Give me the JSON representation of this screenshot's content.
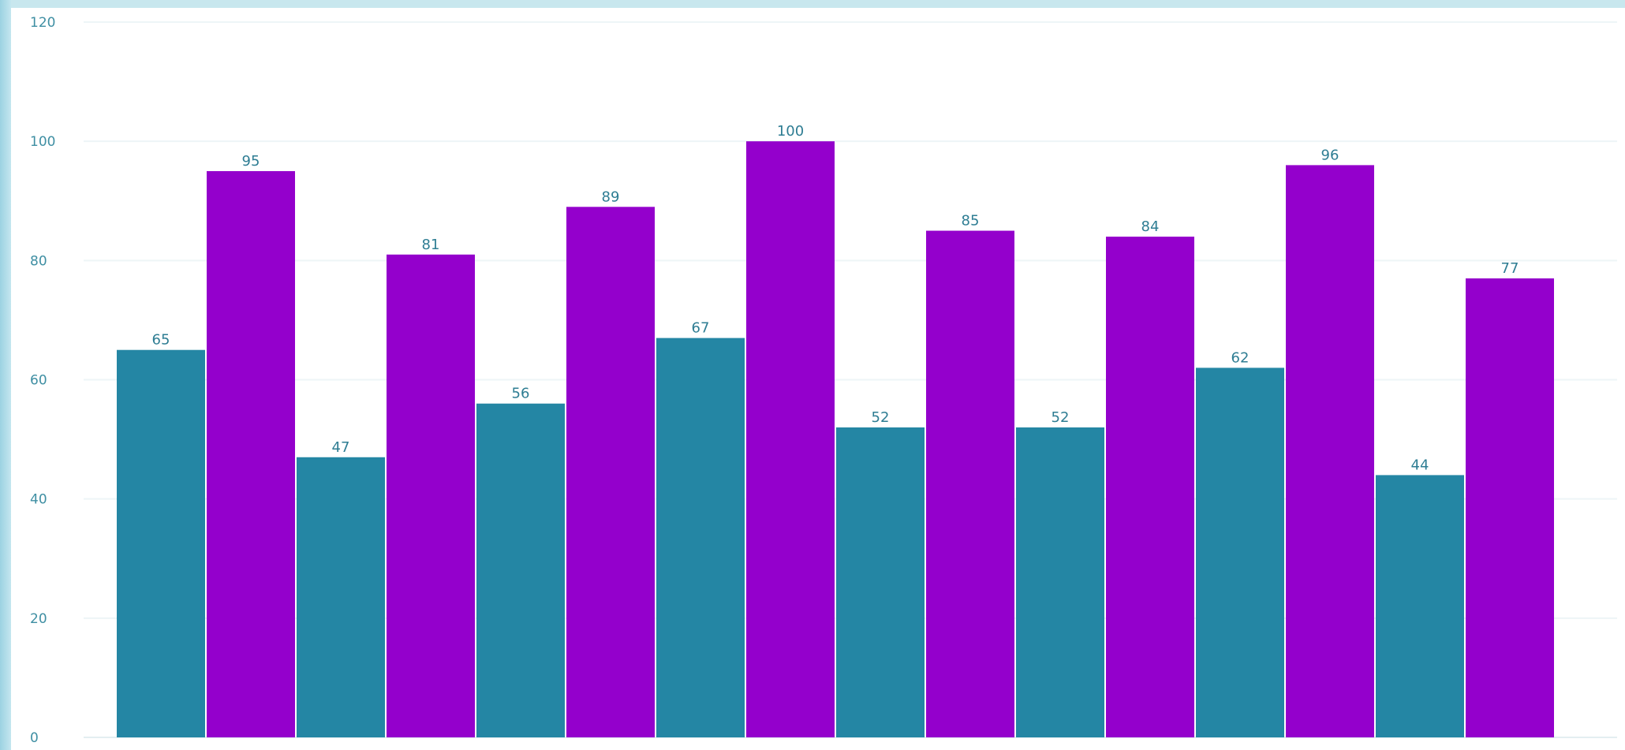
{
  "chart_data": {
    "type": "bar",
    "categories": [
      "",
      "",
      "",
      "",
      "",
      "",
      "",
      ""
    ],
    "series": [
      {
        "values": [
          65,
          47,
          56,
          67,
          52,
          52,
          62,
          44
        ],
        "color": "#2486a4"
      },
      {
        "values": [
          95,
          81,
          89,
          100,
          85,
          84,
          96,
          77
        ],
        "color": "#9400cc"
      }
    ],
    "data_labels": true,
    "data_label_color": "#2e7d93",
    "yticks": [
      0,
      20,
      40,
      60,
      80,
      100,
      120
    ],
    "ylim": [
      0,
      120
    ],
    "grid": true,
    "title": "",
    "xlabel": "",
    "ylabel": ""
  }
}
